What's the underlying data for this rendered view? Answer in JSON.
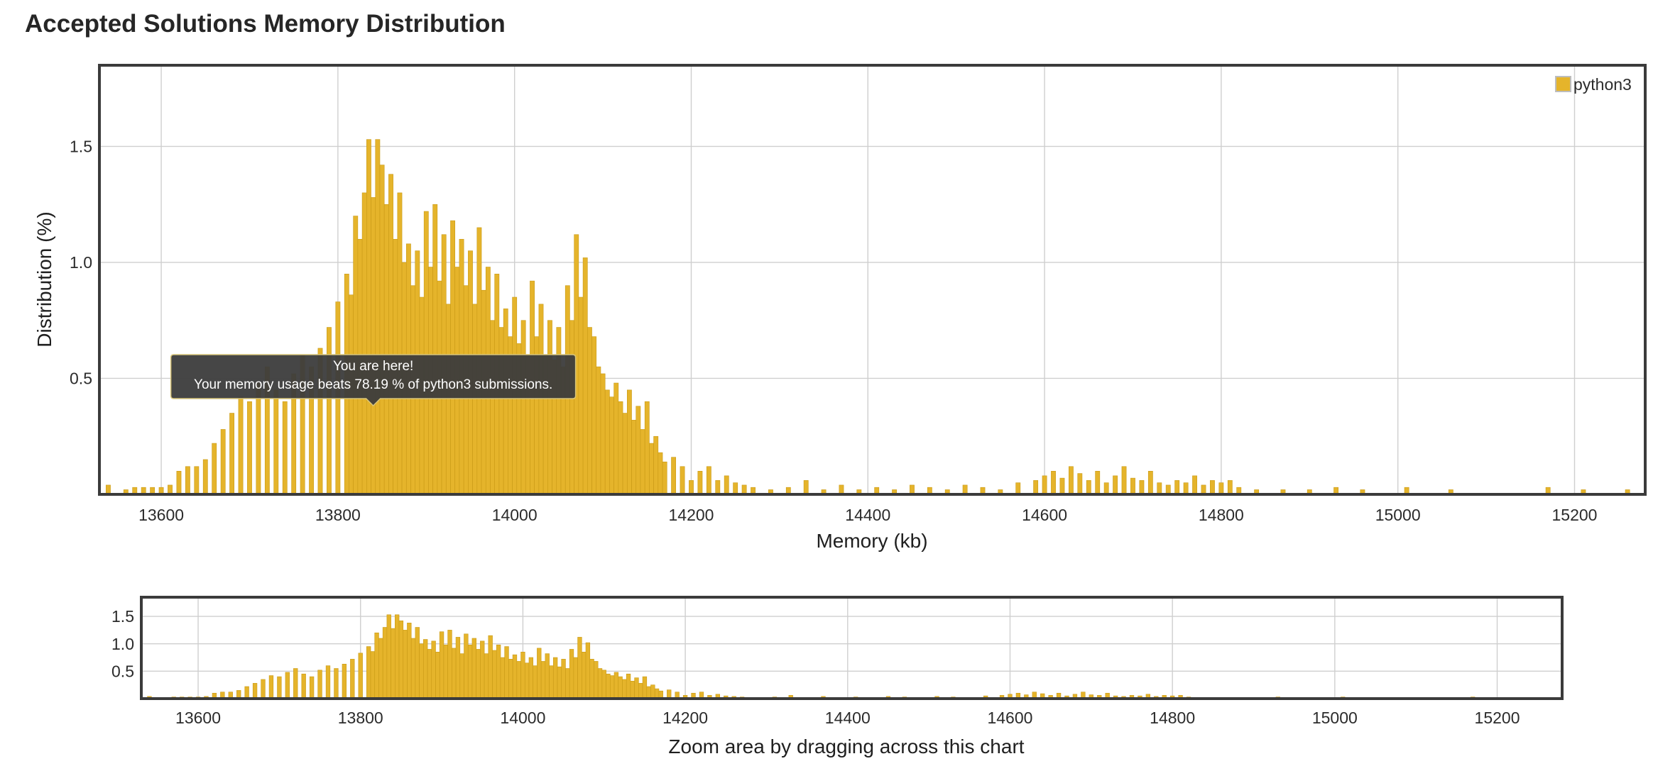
{
  "page": {
    "title": "Accepted Solutions Memory Distribution"
  },
  "colors": {
    "bar": "#e5b42b",
    "bar_edge": "#c99a16",
    "tooltip_bg": "#3c3c3c",
    "frame": "#3b3b3b",
    "grid": "#cfcfcf"
  },
  "tooltip": {
    "line1": "You are here!",
    "line2": "Your memory usage beats 78.19 % of python3 submissions.",
    "memory_kb": 13840
  },
  "navigator": {
    "caption": "Zoom area by dragging across this chart"
  },
  "chart_data": [
    {
      "id": "main",
      "type": "bar",
      "title": "Accepted Solutions Memory Distribution",
      "xlabel": "Memory (kb)",
      "ylabel": "Distribution (%)",
      "xlim": [
        13530,
        15280
      ],
      "ylim": [
        0,
        1.85
      ],
      "xticks": [
        13600,
        13800,
        14000,
        14200,
        14400,
        14600,
        14800,
        15000,
        15200
      ],
      "yticks": [
        0.5,
        1.0,
        1.5
      ],
      "grid": true,
      "legend": {
        "position": "top-right",
        "entries": [
          "python3"
        ]
      },
      "bar_width": 5,
      "series": [
        {
          "name": "python3",
          "points": [
            [
              13540,
              0.04
            ],
            [
              13560,
              0.02
            ],
            [
              13570,
              0.03
            ],
            [
              13580,
              0.03
            ],
            [
              13590,
              0.03
            ],
            [
              13600,
              0.03
            ],
            [
              13610,
              0.04
            ],
            [
              13620,
              0.1
            ],
            [
              13630,
              0.12
            ],
            [
              13640,
              0.12
            ],
            [
              13650,
              0.15
            ],
            [
              13660,
              0.22
            ],
            [
              13670,
              0.28
            ],
            [
              13680,
              0.35
            ],
            [
              13690,
              0.42
            ],
            [
              13700,
              0.4
            ],
            [
              13710,
              0.48
            ],
            [
              13720,
              0.55
            ],
            [
              13730,
              0.45
            ],
            [
              13740,
              0.4
            ],
            [
              13750,
              0.52
            ],
            [
              13760,
              0.6
            ],
            [
              13770,
              0.55
            ],
            [
              13780,
              0.63
            ],
            [
              13790,
              0.72
            ],
            [
              13800,
              0.83
            ],
            [
              13810,
              0.95
            ],
            [
              13815,
              0.86
            ],
            [
              13820,
              1.2
            ],
            [
              13825,
              1.1
            ],
            [
              13830,
              1.3
            ],
            [
              13835,
              1.53
            ],
            [
              13840,
              1.28
            ],
            [
              13845,
              1.53
            ],
            [
              13850,
              1.42
            ],
            [
              13855,
              1.25
            ],
            [
              13860,
              1.38
            ],
            [
              13865,
              1.1
            ],
            [
              13870,
              1.3
            ],
            [
              13875,
              1.0
            ],
            [
              13880,
              1.08
            ],
            [
              13885,
              0.9
            ],
            [
              13890,
              1.05
            ],
            [
              13895,
              0.85
            ],
            [
              13900,
              1.22
            ],
            [
              13905,
              0.98
            ],
            [
              13910,
              1.25
            ],
            [
              13915,
              0.92
            ],
            [
              13920,
              1.12
            ],
            [
              13925,
              0.82
            ],
            [
              13930,
              1.18
            ],
            [
              13935,
              0.98
            ],
            [
              13940,
              1.1
            ],
            [
              13945,
              0.9
            ],
            [
              13950,
              1.05
            ],
            [
              13955,
              0.82
            ],
            [
              13960,
              1.15
            ],
            [
              13965,
              0.88
            ],
            [
              13970,
              0.98
            ],
            [
              13975,
              0.75
            ],
            [
              13980,
              0.95
            ],
            [
              13985,
              0.72
            ],
            [
              13990,
              0.8
            ],
            [
              13995,
              0.68
            ],
            [
              14000,
              0.85
            ],
            [
              14005,
              0.65
            ],
            [
              14010,
              0.75
            ],
            [
              14015,
              0.6
            ],
            [
              14020,
              0.92
            ],
            [
              14025,
              0.68
            ],
            [
              14030,
              0.82
            ],
            [
              14035,
              0.6
            ],
            [
              14040,
              0.75
            ],
            [
              14045,
              0.58
            ],
            [
              14050,
              0.72
            ],
            [
              14055,
              0.55
            ],
            [
              14060,
              0.9
            ],
            [
              14065,
              0.75
            ],
            [
              14070,
              1.12
            ],
            [
              14075,
              0.85
            ],
            [
              14080,
              1.02
            ],
            [
              14085,
              0.72
            ],
            [
              14090,
              0.68
            ],
            [
              14095,
              0.55
            ],
            [
              14100,
              0.52
            ],
            [
              14105,
              0.45
            ],
            [
              14110,
              0.42
            ],
            [
              14115,
              0.48
            ],
            [
              14120,
              0.4
            ],
            [
              14125,
              0.35
            ],
            [
              14130,
              0.45
            ],
            [
              14135,
              0.32
            ],
            [
              14140,
              0.38
            ],
            [
              14145,
              0.28
            ],
            [
              14150,
              0.4
            ],
            [
              14155,
              0.22
            ],
            [
              14160,
              0.25
            ],
            [
              14165,
              0.18
            ],
            [
              14170,
              0.14
            ],
            [
              14180,
              0.16
            ],
            [
              14190,
              0.12
            ],
            [
              14200,
              0.06
            ],
            [
              14210,
              0.1
            ],
            [
              14220,
              0.12
            ],
            [
              14230,
              0.06
            ],
            [
              14240,
              0.08
            ],
            [
              14250,
              0.05
            ],
            [
              14260,
              0.04
            ],
            [
              14270,
              0.03
            ],
            [
              14290,
              0.02
            ],
            [
              14310,
              0.03
            ],
            [
              14330,
              0.06
            ],
            [
              14350,
              0.02
            ],
            [
              14370,
              0.04
            ],
            [
              14390,
              0.02
            ],
            [
              14410,
              0.03
            ],
            [
              14430,
              0.02
            ],
            [
              14450,
              0.04
            ],
            [
              14470,
              0.03
            ],
            [
              14490,
              0.02
            ],
            [
              14510,
              0.04
            ],
            [
              14530,
              0.03
            ],
            [
              14550,
              0.02
            ],
            [
              14570,
              0.05
            ],
            [
              14590,
              0.06
            ],
            [
              14600,
              0.08
            ],
            [
              14610,
              0.1
            ],
            [
              14620,
              0.07
            ],
            [
              14630,
              0.12
            ],
            [
              14640,
              0.09
            ],
            [
              14650,
              0.06
            ],
            [
              14660,
              0.1
            ],
            [
              14670,
              0.05
            ],
            [
              14680,
              0.08
            ],
            [
              14690,
              0.12
            ],
            [
              14700,
              0.07
            ],
            [
              14710,
              0.06
            ],
            [
              14720,
              0.1
            ],
            [
              14730,
              0.05
            ],
            [
              14740,
              0.04
            ],
            [
              14750,
              0.06
            ],
            [
              14760,
              0.05
            ],
            [
              14770,
              0.08
            ],
            [
              14780,
              0.04
            ],
            [
              14790,
              0.06
            ],
            [
              14800,
              0.05
            ],
            [
              14810,
              0.06
            ],
            [
              14820,
              0.03
            ],
            [
              14840,
              0.02
            ],
            [
              14870,
              0.02
            ],
            [
              14900,
              0.02
            ],
            [
              14930,
              0.03
            ],
            [
              14960,
              0.02
            ],
            [
              15010,
              0.03
            ],
            [
              15060,
              0.02
            ],
            [
              15170,
              0.03
            ],
            [
              15210,
              0.02
            ],
            [
              15260,
              0.02
            ]
          ]
        }
      ]
    },
    {
      "id": "navigator",
      "type": "bar",
      "title": "",
      "xlabel": "Zoom area by dragging across this chart",
      "ylabel": "",
      "xlim": [
        13530,
        15280
      ],
      "ylim": [
        0,
        1.85
      ],
      "xticks": [
        13600,
        13800,
        14000,
        14200,
        14400,
        14600,
        14800,
        15000,
        15200
      ],
      "yticks": [
        0.5,
        1.0,
        1.5
      ],
      "grid": true,
      "series_ref": "python3"
    }
  ]
}
